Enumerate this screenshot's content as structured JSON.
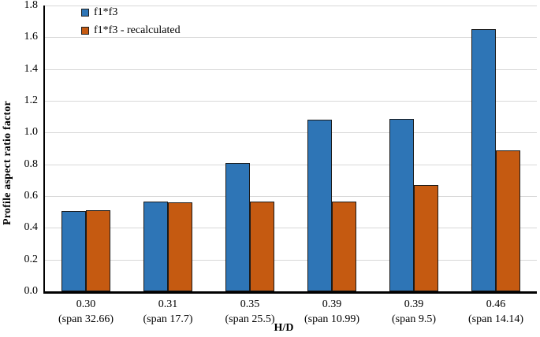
{
  "figure": {
    "legend_items": [
      {
        "label": "f1*f3",
        "color": "#2E75B6"
      },
      {
        "label": "f1*f3 - recalculated",
        "color": "#C55A11"
      }
    ]
  },
  "chart_data": {
    "type": "bar",
    "title": "",
    "xlabel": "H/D",
    "ylabel": "Profile aspect ratio factor",
    "ylim": [
      0,
      1.8
    ],
    "ytick_step": 0.2,
    "grid": true,
    "legend_position": "top-left-inside",
    "bar_border_color": "#1a1a1a",
    "gridline_color": "#d8d8d8",
    "categories": [
      "0.30",
      "0.31",
      "0.35",
      "0.39",
      "0.39",
      "0.46"
    ],
    "category_sublabels": [
      "(span 32.66)",
      "(span 17.7)",
      "(span 25.5)",
      "(span 10.99)",
      "(span 9.5)",
      "(span 14.14)"
    ],
    "series": [
      {
        "name": "f1*f3",
        "color": "#2E75B6",
        "values": [
          0.505,
          0.565,
          0.81,
          1.08,
          1.085,
          1.65
        ]
      },
      {
        "name": "f1*f3 - recalculated",
        "color": "#C55A11",
        "values": [
          0.51,
          0.56,
          0.565,
          0.565,
          0.67,
          0.89
        ]
      }
    ]
  }
}
